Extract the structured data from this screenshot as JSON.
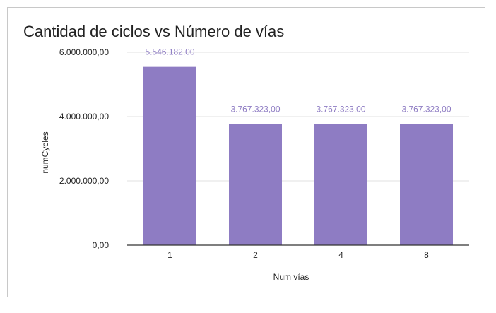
{
  "chart_data": {
    "type": "bar",
    "title": "Cantidad de ciclos vs Número de vías",
    "xlabel": "Num vías",
    "ylabel": "numCycles",
    "categories": [
      "1",
      "2",
      "4",
      "8"
    ],
    "series": [
      {
        "values": [
          5546182,
          3767323,
          3767323,
          3767323
        ],
        "data_labels": [
          "5.546.182,00",
          "3.767.323,00",
          "3.767.323,00",
          "3.767.323,00"
        ]
      }
    ],
    "ylim": [
      0,
      6000000
    ],
    "yticks": [
      0,
      2000000,
      4000000,
      6000000
    ],
    "ytick_labels": [
      "0,00",
      "2.000.000,00",
      "4.000.000,00",
      "6.000.000,00"
    ],
    "grid": true,
    "legend": "none",
    "colors": {
      "bar": "#8e7cc3",
      "data_label": "#8e7cc3",
      "gridline": "#e0e0e0",
      "axis": "#333333"
    }
  }
}
